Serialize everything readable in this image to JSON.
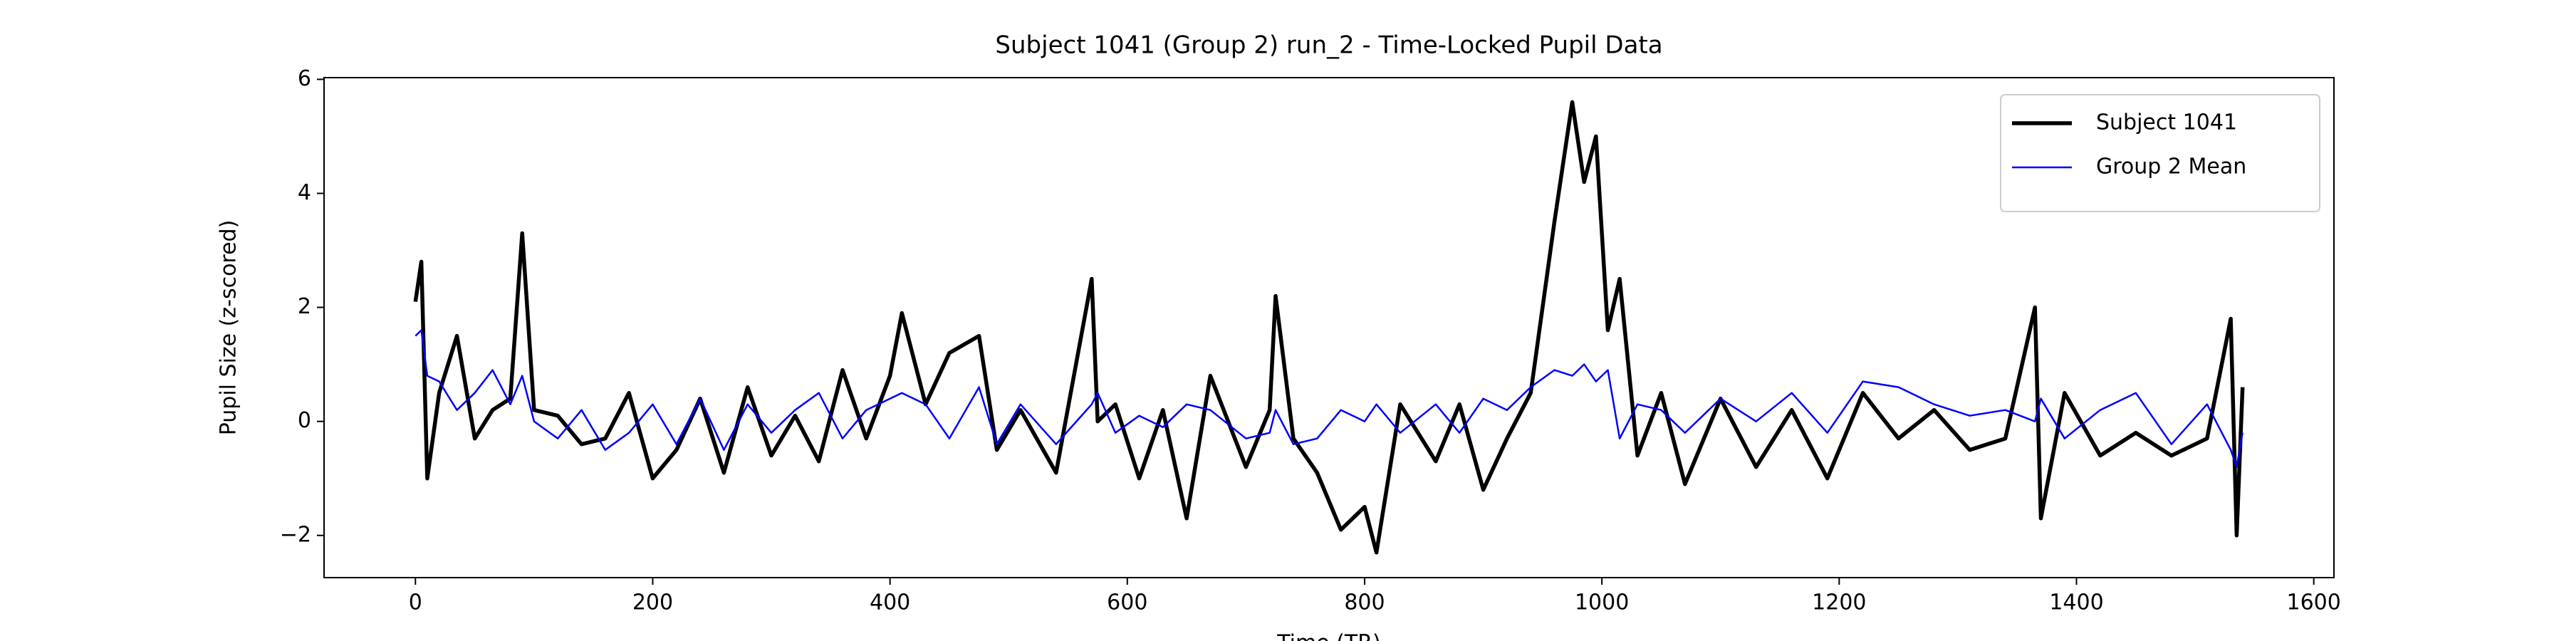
{
  "chart_data": {
    "type": "line",
    "title": "Subject 1041 (Group 2) run_2 - Time-Locked Pupil Data",
    "x_label": "Time (TR)",
    "y_label": "Pupil Size (z-scored)",
    "x": [
      0,
      5,
      10,
      20,
      35,
      50,
      65,
      80,
      90,
      100,
      120,
      140,
      160,
      180,
      200,
      220,
      240,
      260,
      280,
      300,
      320,
      340,
      360,
      380,
      400,
      410,
      430,
      450,
      475,
      490,
      510,
      540,
      570,
      575,
      590,
      610,
      630,
      650,
      670,
      700,
      720,
      725,
      740,
      760,
      780,
      800,
      810,
      830,
      860,
      880,
      900,
      920,
      940,
      960,
      975,
      985,
      995,
      1005,
      1015,
      1030,
      1050,
      1070,
      1100,
      1130,
      1160,
      1190,
      1220,
      1250,
      1280,
      1310,
      1340,
      1365,
      1370,
      1390,
      1420,
      1450,
      1480,
      1510,
      1530,
      1535,
      1540
    ],
    "series": [
      {
        "name": "Subject 1041",
        "color": "#000000",
        "linewidth": 5.5,
        "values": [
          2.1,
          2.8,
          -1.0,
          0.5,
          1.5,
          -0.3,
          0.2,
          0.4,
          3.3,
          0.2,
          0.1,
          -0.4,
          -0.3,
          0.5,
          -1.0,
          -0.5,
          0.4,
          -0.9,
          0.6,
          -0.6,
          0.1,
          -0.7,
          0.9,
          -0.3,
          0.8,
          1.9,
          0.3,
          1.2,
          1.5,
          -0.5,
          0.2,
          -0.9,
          2.5,
          0.0,
          0.3,
          -1.0,
          0.2,
          -1.7,
          0.8,
          -0.8,
          0.2,
          2.2,
          -0.3,
          -0.9,
          -1.9,
          -1.5,
          -2.3,
          0.3,
          -0.7,
          0.3,
          -1.2,
          -0.3,
          0.5,
          3.5,
          5.6,
          4.2,
          5.0,
          1.6,
          2.5,
          -0.6,
          0.5,
          -1.1,
          0.4,
          -0.8,
          0.2,
          -1.0,
          0.5,
          -0.3,
          0.2,
          -0.5,
          -0.3,
          2.0,
          -1.7,
          0.5,
          -0.6,
          -0.2,
          -0.6,
          -0.3,
          1.8,
          -2.0,
          0.6
        ]
      },
      {
        "name": "Group 2 Mean",
        "color": "#0000ff",
        "linewidth": 2.5,
        "values": [
          1.5,
          1.6,
          0.8,
          0.7,
          0.2,
          0.5,
          0.9,
          0.3,
          0.8,
          0.0,
          -0.3,
          0.2,
          -0.5,
          -0.2,
          0.3,
          -0.4,
          0.4,
          -0.5,
          0.3,
          -0.2,
          0.2,
          0.5,
          -0.3,
          0.2,
          0.4,
          0.5,
          0.3,
          -0.3,
          0.6,
          -0.4,
          0.3,
          -0.4,
          0.3,
          0.5,
          -0.2,
          0.1,
          -0.1,
          0.3,
          0.2,
          -0.3,
          -0.2,
          0.2,
          -0.4,
          -0.3,
          0.2,
          0.0,
          0.3,
          -0.2,
          0.3,
          -0.2,
          0.4,
          0.2,
          0.6,
          0.9,
          0.8,
          1.0,
          0.7,
          0.9,
          -0.3,
          0.3,
          0.2,
          -0.2,
          0.4,
          0.0,
          0.5,
          -0.2,
          0.7,
          0.6,
          0.3,
          0.1,
          0.2,
          0.0,
          0.4,
          -0.3,
          0.2,
          0.5,
          -0.4,
          0.3,
          -0.5,
          -0.8,
          -0.2
        ]
      }
    ],
    "xlim": [
      -77,
      1617
    ],
    "ylim": [
      -2.74,
      6.03
    ],
    "xticks": [
      0,
      200,
      400,
      600,
      800,
      1000,
      1200,
      1400,
      1600
    ],
    "yticks": [
      {
        "value": -2,
        "label": "−2"
      },
      0,
      2,
      4,
      6
    ],
    "legend": "upper right",
    "grid": false
  }
}
